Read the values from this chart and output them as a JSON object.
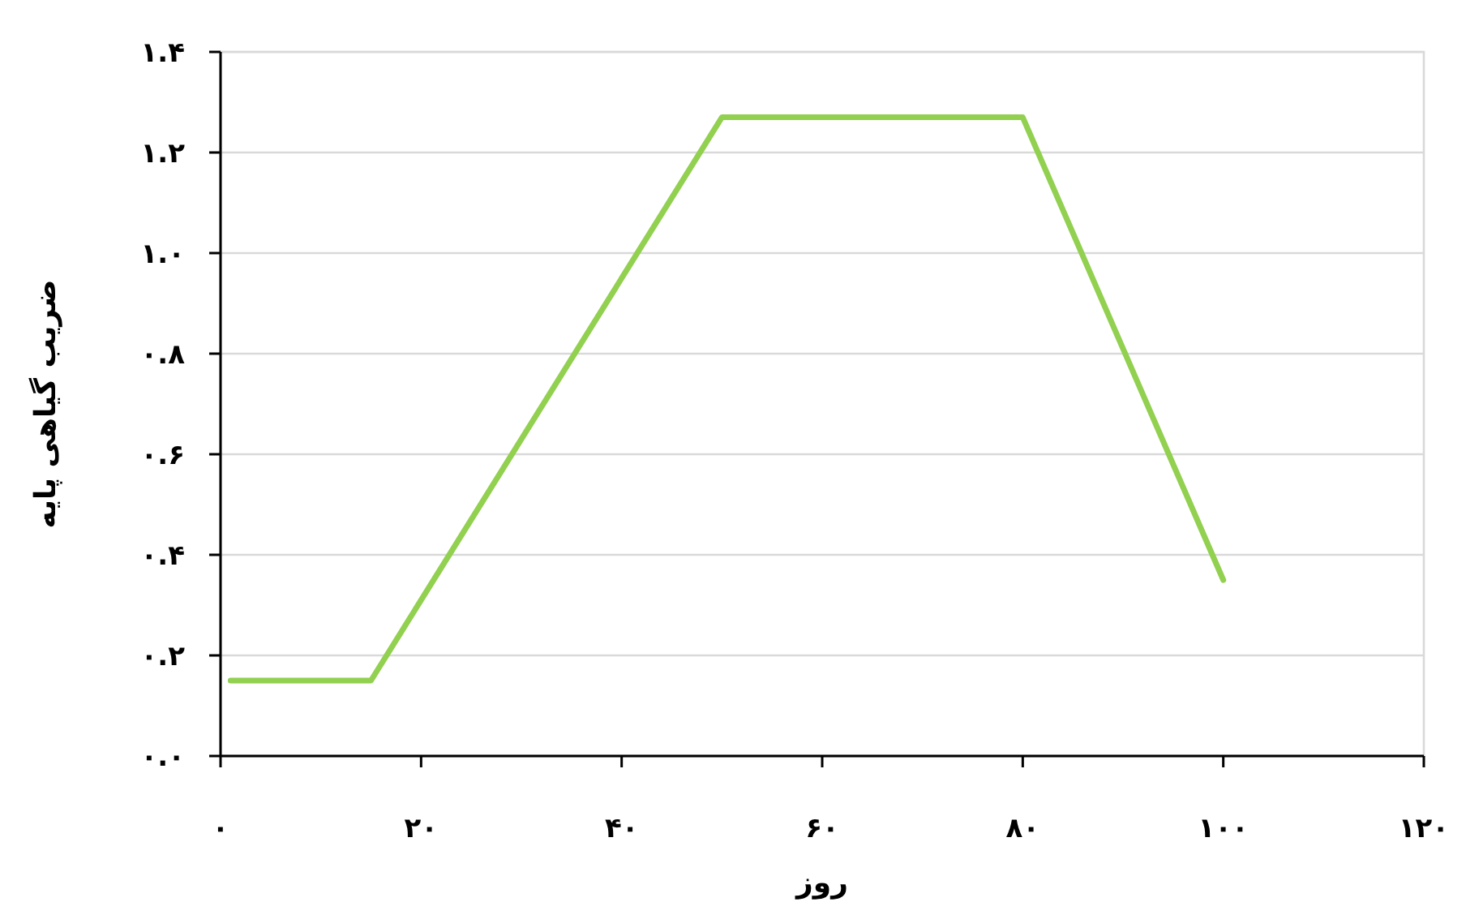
{
  "chart_data": {
    "type": "line",
    "xlabel": "روز",
    "ylabel": "ضریب گیاهی پایه",
    "x": [
      1,
      15,
      50,
      80,
      100
    ],
    "series": [
      {
        "color": "#92d050",
        "values": [
          0.15,
          0.15,
          1.27,
          1.27,
          0.35
        ]
      }
    ],
    "xlim": [
      0,
      120
    ],
    "ylim": [
      0,
      1.4
    ],
    "xticks": [
      {
        "value": 0,
        "label": "۰"
      },
      {
        "value": 20,
        "label": "۲۰"
      },
      {
        "value": 40,
        "label": "۴۰"
      },
      {
        "value": 60,
        "label": "۶۰"
      },
      {
        "value": 80,
        "label": "۸۰"
      },
      {
        "value": 100,
        "label": "۱۰۰"
      },
      {
        "value": 120,
        "label": "۱۲۰"
      }
    ],
    "yticks": [
      {
        "value": 0,
        "label": "۰.۰"
      },
      {
        "value": 0.2,
        "label": "۰.۲"
      },
      {
        "value": 0.4,
        "label": "۰.۴"
      },
      {
        "value": 0.6,
        "label": "۰.۶"
      },
      {
        "value": 0.8,
        "label": "۰.۸"
      },
      {
        "value": 1,
        "label": "۱.۰"
      },
      {
        "value": 1.2,
        "label": "۱.۲"
      },
      {
        "value": 1.4,
        "label": "۱.۴"
      }
    ],
    "grid": "y",
    "marker": "none",
    "line_style": "solid"
  }
}
